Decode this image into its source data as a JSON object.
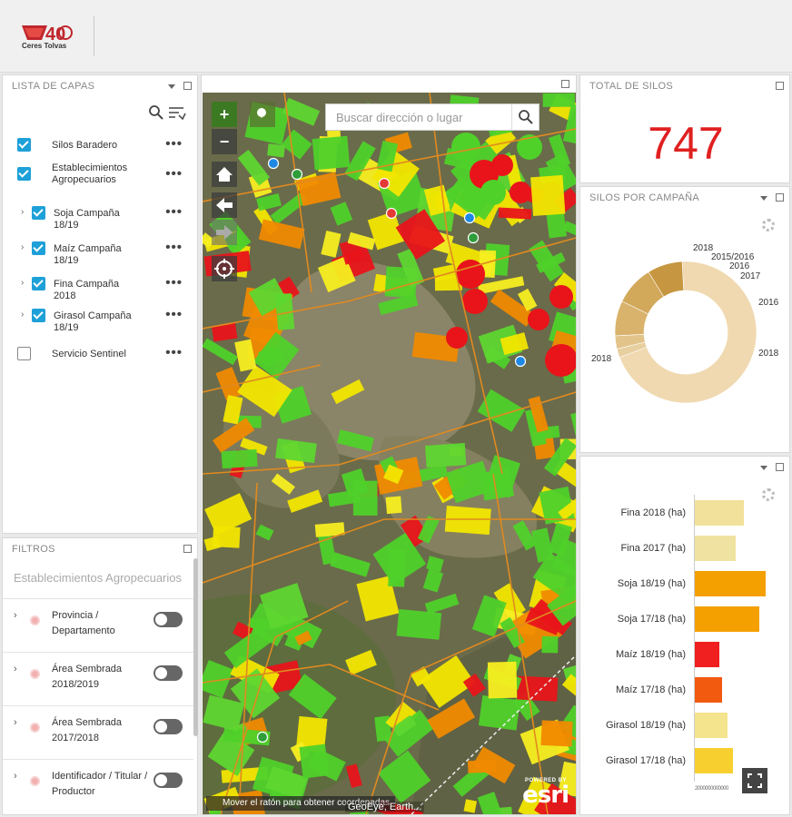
{
  "header": {
    "logo_text": "Ceres Tolvas",
    "logo_number": "40"
  },
  "layers": {
    "title": "LISTA DE CAPAS",
    "items": [
      {
        "label": "Silos Baradero",
        "checked": true,
        "expandable": false,
        "indent": false
      },
      {
        "label": "Establecimientos Agropecuarios",
        "checked": true,
        "expandable": false,
        "indent": false
      },
      {
        "label": "Soja Campaña 18/19",
        "checked": true,
        "expandable": true,
        "indent": true
      },
      {
        "label": "Maíz Campaña 18/19",
        "checked": true,
        "expandable": true,
        "indent": true
      },
      {
        "label": "Fina Campaña 2018",
        "checked": true,
        "expandable": true,
        "indent": true
      },
      {
        "label": "Girasol Campaña 18/19",
        "checked": true,
        "expandable": true,
        "indent": true
      },
      {
        "label": "Servicio Sentinel",
        "checked": false,
        "expandable": false,
        "indent": false
      }
    ],
    "more_label": "•••"
  },
  "filters": {
    "title": "FILTROS",
    "heading": "Establecimientos Agropecuarios",
    "items": [
      {
        "label": "Provincia / Departamento"
      },
      {
        "label": "Área Sembrada 2018/2019"
      },
      {
        "label": "Área Sembrada 2017/2018"
      },
      {
        "label": "Identificador / Titular / Productor"
      }
    ]
  },
  "map": {
    "search_placeholder": "Buscar dirección o lugar",
    "coord_text": "Mover el ratón para obtener coordenadas",
    "attribution": "GeoEye, Earth...",
    "esri_label": "esri",
    "esri_powered": "POWERED BY",
    "buttons": {
      "zoom_in": "+",
      "zoom_out": "−"
    }
  },
  "total_silos": {
    "title": "TOTAL DE SILOS",
    "value": "747",
    "value_color": "#e02020"
  },
  "campaign_chart": {
    "title": "SILOS POR CAMPAÑA",
    "labels": [
      "2018",
      "2015/2016",
      "2016",
      "2017",
      "2016",
      "2018",
      "2018"
    ]
  },
  "chart_data": [
    {
      "type": "pie",
      "title": "SILOS POR CAMPAÑA",
      "categories": [
        "2018",
        "2015/2016",
        "2016",
        "2017",
        "2016",
        "2018",
        "2018"
      ],
      "values": [
        70,
        2,
        3,
        8,
        9,
        8,
        0
      ],
      "colors": [
        "#f0d9b0",
        "#e8cfa0",
        "#e2c48a",
        "#d9b36c",
        "#d2a85a",
        "#c69640",
        "#edd5a8"
      ]
    },
    {
      "type": "bar",
      "orientation": "horizontal",
      "categories": [
        "Fina 2018 (ha)",
        "Fina 2017 (ha)",
        "Soja 18/19 (ha)",
        "Soja 17/18 (ha)",
        "Maíz 18/19 (ha)",
        "Maíz 17/18 (ha)",
        "Girasol 18/19 (ha)",
        "Girasol 17/18 (ha)"
      ],
      "values": [
        36,
        30,
        52,
        47,
        18,
        20,
        24,
        28
      ],
      "colors": [
        "#f2e19a",
        "#f0e2a0",
        "#f4a000",
        "#f4a000",
        "#f02020",
        "#f25a10",
        "#f5e48e",
        "#f7d030"
      ],
      "xlim": [
        0,
        60
      ]
    }
  ]
}
